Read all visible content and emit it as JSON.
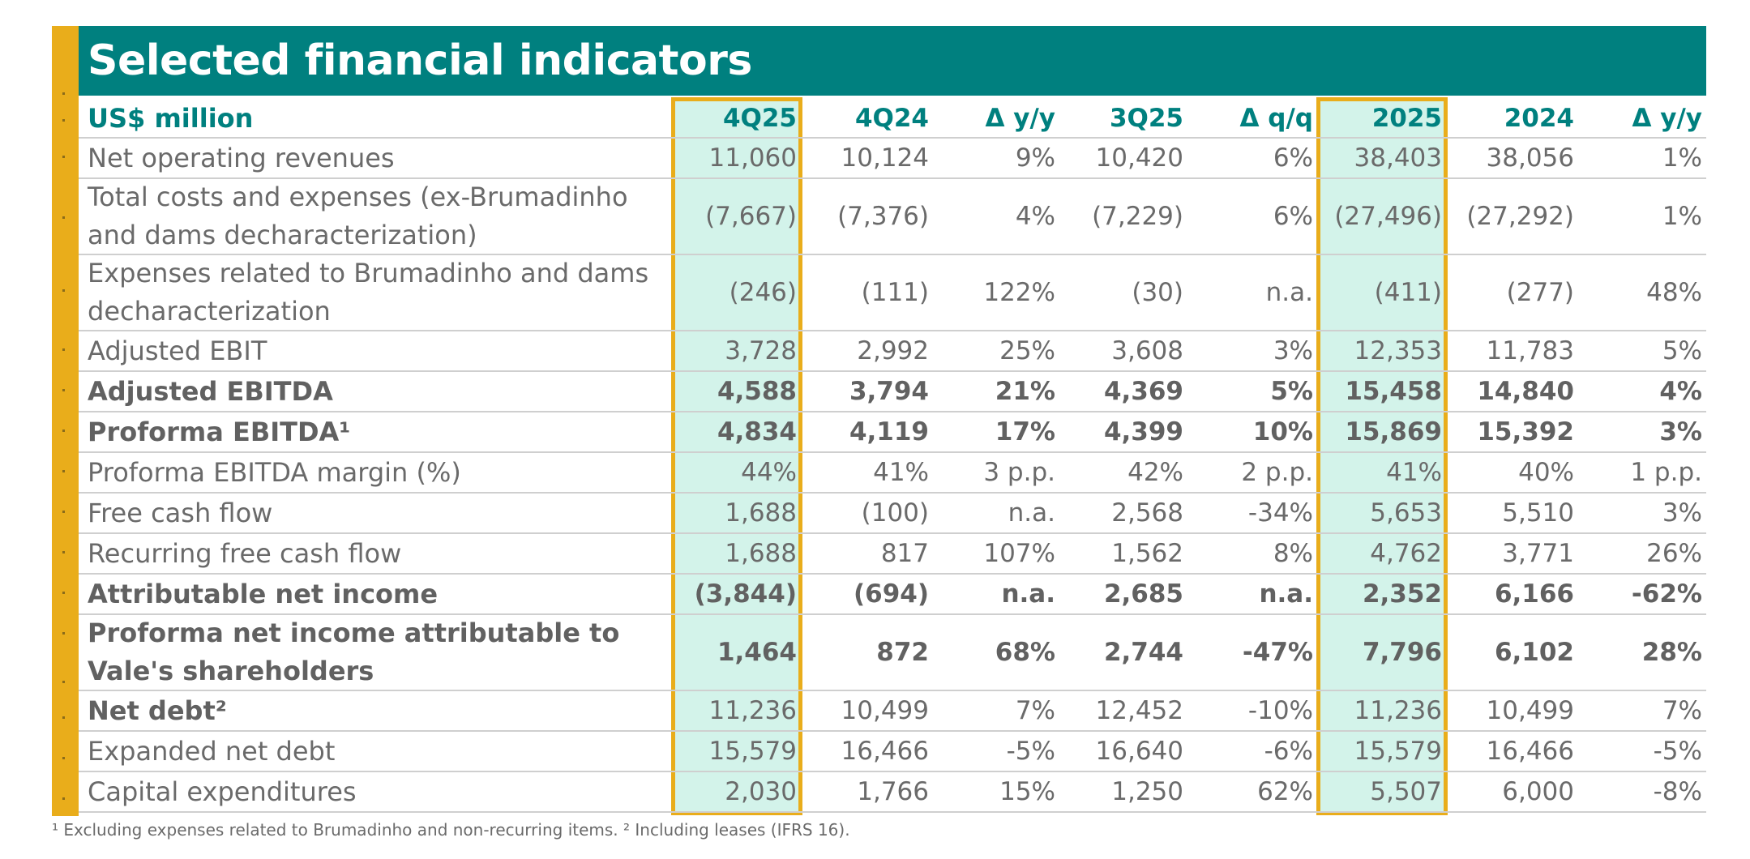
{
  "title": "Selected financial indicators",
  "colors": {
    "header_bg": "#00807f",
    "accent_yellow": "#e9ad1b",
    "highlight_fill": "#d3f3ea",
    "text_gray": "#6a6a6a"
  },
  "table": {
    "unit_label": "US$ million",
    "columns": [
      "4Q25",
      "4Q24",
      "Δ y/y",
      "3Q25",
      "Δ q/q",
      "2025",
      "2024",
      "Δ y/y"
    ],
    "rows": [
      {
        "label": "Net operating revenues",
        "bold": false,
        "values": [
          "11,060",
          "10,124",
          "9%",
          "10,420",
          "6%",
          "38,403",
          "38,056",
          "1%"
        ]
      },
      {
        "label": "Total costs and expenses (ex-Brumadinho and dams decharacterization)",
        "bold": false,
        "values": [
          "(7,667)",
          "(7,376)",
          "4%",
          "(7,229)",
          "6%",
          "(27,496)",
          "(27,292)",
          "1%"
        ]
      },
      {
        "label": "Expenses related to Brumadinho and dams decharacterization",
        "bold": false,
        "values": [
          "(246)",
          "(111)",
          "122%",
          "(30)",
          "n.a.",
          "(411)",
          "(277)",
          "48%"
        ]
      },
      {
        "label": "Adjusted EBIT",
        "bold": false,
        "values": [
          "3,728",
          "2,992",
          "25%",
          "3,608",
          "3%",
          "12,353",
          "11,783",
          "5%"
        ]
      },
      {
        "label": "Adjusted EBITDA",
        "bold": true,
        "values": [
          "4,588",
          "3,794",
          "21%",
          "4,369",
          "5%",
          "15,458",
          "14,840",
          "4%"
        ]
      },
      {
        "label": "Proforma EBITDA¹",
        "bold": true,
        "values": [
          "4,834",
          "4,119",
          "17%",
          "4,399",
          "10%",
          "15,869",
          "15,392",
          "3%"
        ]
      },
      {
        "label": "Proforma EBITDA margin (%)",
        "bold": false,
        "values": [
          "44%",
          "41%",
          "3 p.p.",
          "42%",
          "2 p.p.",
          "41%",
          "40%",
          "1 p.p."
        ]
      },
      {
        "label": "Free cash flow",
        "bold": false,
        "values": [
          "1,688",
          "(100)",
          "n.a.",
          "2,568",
          "-34%",
          "5,653",
          "5,510",
          "3%"
        ]
      },
      {
        "label": "Recurring free cash flow",
        "bold": false,
        "values": [
          "1,688",
          "817",
          "107%",
          "1,562",
          "8%",
          "4,762",
          "3,771",
          "26%"
        ]
      },
      {
        "label": "Attributable net income",
        "bold": true,
        "values": [
          "(3,844)",
          "(694)",
          "n.a.",
          "2,685",
          "n.a.",
          "2,352",
          "6,166",
          "-62%"
        ]
      },
      {
        "label": "Proforma net income attributable to Vale's shareholders",
        "bold": true,
        "values": [
          "1,464",
          "872",
          "68%",
          "2,744",
          "-47%",
          "7,796",
          "6,102",
          "28%"
        ]
      },
      {
        "label": "Net debt²",
        "bold": false,
        "label_bold": true,
        "values": [
          "11,236",
          "10,499",
          "7%",
          "12,452",
          "-10%",
          "11,236",
          "10,499",
          "7%"
        ]
      },
      {
        "label": "Expanded net debt",
        "bold": false,
        "values": [
          "15,579",
          "16,466",
          "-5%",
          "16,640",
          "-6%",
          "15,579",
          "16,466",
          "-5%"
        ]
      },
      {
        "label": "Capital expenditures",
        "bold": false,
        "values": [
          "2,030",
          "1,766",
          "15%",
          "1,250",
          "62%",
          "5,507",
          "6,000",
          "-8%"
        ]
      }
    ]
  },
  "footnote": "¹ Excluding expenses related to Brumadinho and non-recurring items. ² Including leases (IFRS 16)."
}
